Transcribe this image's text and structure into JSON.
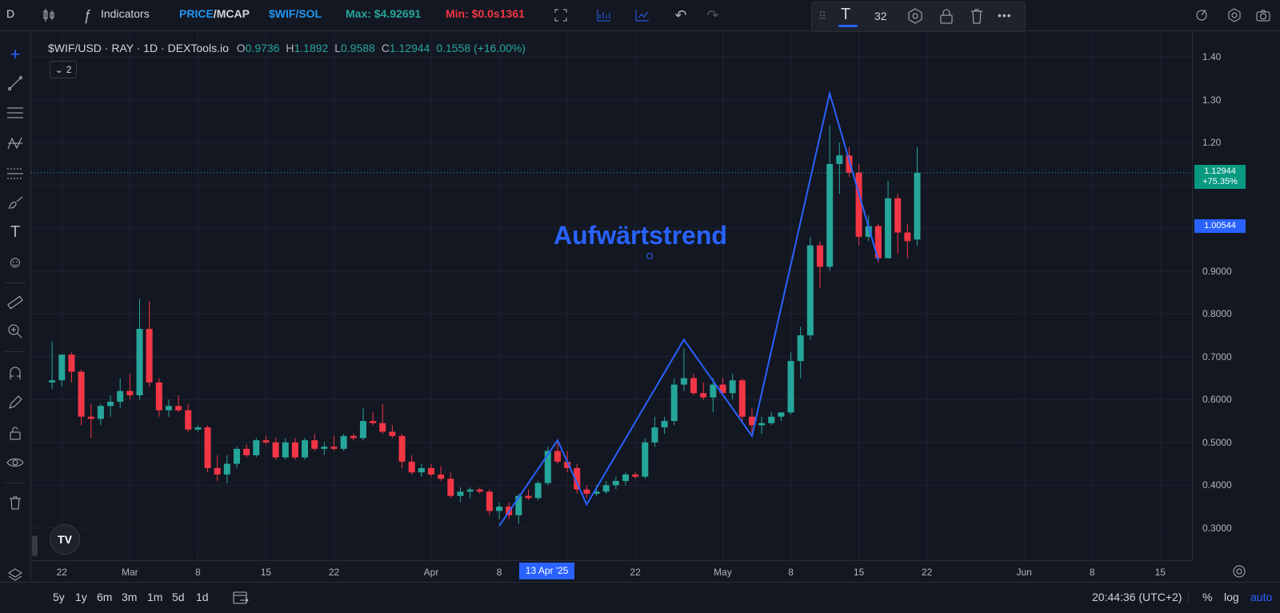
{
  "topbar": {
    "symbol_short": "D",
    "indicators_label": "Indicators",
    "price_mcap": {
      "a": "PRICE",
      "sep": "/",
      "b": "MCAP"
    },
    "pair_sol": "$WIF/SOL",
    "max_label": "Max: $4.92691",
    "min_label": "Min: $0.0s1361",
    "float_font_size": "32"
  },
  "legend": {
    "symbol": "$WIF/USD · RAY · 1D · DEXTools.io",
    "o_key": "O",
    "o_val": "0.9736",
    "h_key": "H",
    "h_val": "1.1892",
    "l_key": "L",
    "l_val": "0.9588",
    "c_key": "C",
    "c_val": "1.12944",
    "change": "0.1558 (+16.00%)",
    "collapsed_count": "2"
  },
  "annotation": "Aufwärtstrend",
  "price_axis": {
    "labels": [
      "1.40",
      "1.30",
      "1.20",
      "0.9000",
      "0.8000",
      "0.7000",
      "0.6000",
      "0.5000",
      "0.4000",
      "0.3000"
    ],
    "current_price": "1.12944",
    "current_change": "+75.35%",
    "cursor_price": "1.00544"
  },
  "time_axis": {
    "labels": [
      "22",
      "Mar",
      "8",
      "15",
      "22",
      "Apr",
      "8",
      "22",
      "May",
      "8",
      "15",
      "22",
      "Jun",
      "8",
      "15"
    ],
    "cursor_date": "13 Apr '25"
  },
  "bottombar": {
    "timeframes": [
      "5y",
      "1y",
      "6m",
      "3m",
      "1m",
      "5d",
      "1d"
    ],
    "clock": "20:44:36 (UTC+2)",
    "percent": "%",
    "log": "log",
    "auto": "auto"
  },
  "colors": {
    "up": "#26a69a",
    "down": "#f23645",
    "accent": "#2962ff",
    "background": "#131722"
  },
  "chart_data": {
    "type": "candlestick",
    "candles": [
      {
        "date": "2025-02-21",
        "o": 0.64,
        "h": 0.735,
        "l": 0.625,
        "c": 0.645
      },
      {
        "date": "2025-02-22",
        "o": 0.645,
        "h": 0.7,
        "l": 0.63,
        "c": 0.705
      },
      {
        "date": "2025-02-23",
        "o": 0.705,
        "h": 0.71,
        "l": 0.64,
        "c": 0.665
      },
      {
        "date": "2025-02-24",
        "o": 0.665,
        "h": 0.67,
        "l": 0.54,
        "c": 0.56
      },
      {
        "date": "2025-02-25",
        "o": 0.56,
        "h": 0.59,
        "l": 0.51,
        "c": 0.555
      },
      {
        "date": "2025-02-26",
        "o": 0.555,
        "h": 0.59,
        "l": 0.54,
        "c": 0.585
      },
      {
        "date": "2025-02-27",
        "o": 0.585,
        "h": 0.61,
        "l": 0.56,
        "c": 0.595
      },
      {
        "date": "2025-02-28",
        "o": 0.595,
        "h": 0.65,
        "l": 0.58,
        "c": 0.62
      },
      {
        "date": "2025-03-01",
        "o": 0.62,
        "h": 0.66,
        "l": 0.6,
        "c": 0.61
      },
      {
        "date": "2025-03-02",
        "o": 0.61,
        "h": 0.835,
        "l": 0.6,
        "c": 0.765
      },
      {
        "date": "2025-03-03",
        "o": 0.765,
        "h": 0.83,
        "l": 0.63,
        "c": 0.64
      },
      {
        "date": "2025-03-04",
        "o": 0.64,
        "h": 0.65,
        "l": 0.56,
        "c": 0.575
      },
      {
        "date": "2025-03-05",
        "o": 0.575,
        "h": 0.6,
        "l": 0.56,
        "c": 0.585
      },
      {
        "date": "2025-03-06",
        "o": 0.585,
        "h": 0.61,
        "l": 0.57,
        "c": 0.575
      },
      {
        "date": "2025-03-07",
        "o": 0.575,
        "h": 0.59,
        "l": 0.525,
        "c": 0.53
      },
      {
        "date": "2025-03-08",
        "o": 0.53,
        "h": 0.54,
        "l": 0.525,
        "c": 0.535
      },
      {
        "date": "2025-03-09",
        "o": 0.535,
        "h": 0.54,
        "l": 0.43,
        "c": 0.44
      },
      {
        "date": "2025-03-10",
        "o": 0.44,
        "h": 0.47,
        "l": 0.41,
        "c": 0.425
      },
      {
        "date": "2025-03-11",
        "o": 0.425,
        "h": 0.47,
        "l": 0.405,
        "c": 0.45
      },
      {
        "date": "2025-03-12",
        "o": 0.45,
        "h": 0.49,
        "l": 0.44,
        "c": 0.485
      },
      {
        "date": "2025-03-13",
        "o": 0.485,
        "h": 0.495,
        "l": 0.465,
        "c": 0.47
      },
      {
        "date": "2025-03-14",
        "o": 0.47,
        "h": 0.51,
        "l": 0.465,
        "c": 0.505
      },
      {
        "date": "2025-03-15",
        "o": 0.505,
        "h": 0.515,
        "l": 0.495,
        "c": 0.5
      },
      {
        "date": "2025-03-16",
        "o": 0.5,
        "h": 0.51,
        "l": 0.46,
        "c": 0.465
      },
      {
        "date": "2025-03-17",
        "o": 0.465,
        "h": 0.51,
        "l": 0.46,
        "c": 0.5
      },
      {
        "date": "2025-03-18",
        "o": 0.5,
        "h": 0.51,
        "l": 0.46,
        "c": 0.465
      },
      {
        "date": "2025-03-19",
        "o": 0.465,
        "h": 0.51,
        "l": 0.46,
        "c": 0.505
      },
      {
        "date": "2025-03-20",
        "o": 0.505,
        "h": 0.52,
        "l": 0.48,
        "c": 0.485
      },
      {
        "date": "2025-03-21",
        "o": 0.485,
        "h": 0.5,
        "l": 0.47,
        "c": 0.49
      },
      {
        "date": "2025-03-22",
        "o": 0.49,
        "h": 0.515,
        "l": 0.48,
        "c": 0.485
      },
      {
        "date": "2025-03-23",
        "o": 0.485,
        "h": 0.52,
        "l": 0.48,
        "c": 0.515
      },
      {
        "date": "2025-03-24",
        "o": 0.515,
        "h": 0.52,
        "l": 0.505,
        "c": 0.51
      },
      {
        "date": "2025-03-25",
        "o": 0.51,
        "h": 0.58,
        "l": 0.505,
        "c": 0.55
      },
      {
        "date": "2025-03-26",
        "o": 0.55,
        "h": 0.57,
        "l": 0.54,
        "c": 0.545
      },
      {
        "date": "2025-03-27",
        "o": 0.545,
        "h": 0.59,
        "l": 0.52,
        "c": 0.525
      },
      {
        "date": "2025-03-28",
        "o": 0.525,
        "h": 0.54,
        "l": 0.51,
        "c": 0.515
      },
      {
        "date": "2025-03-29",
        "o": 0.515,
        "h": 0.52,
        "l": 0.44,
        "c": 0.455
      },
      {
        "date": "2025-03-30",
        "o": 0.455,
        "h": 0.47,
        "l": 0.425,
        "c": 0.43
      },
      {
        "date": "2025-03-31",
        "o": 0.43,
        "h": 0.45,
        "l": 0.42,
        "c": 0.44
      },
      {
        "date": "2025-04-01",
        "o": 0.44,
        "h": 0.45,
        "l": 0.42,
        "c": 0.425
      },
      {
        "date": "2025-04-02",
        "o": 0.425,
        "h": 0.445,
        "l": 0.41,
        "c": 0.415
      },
      {
        "date": "2025-04-03",
        "o": 0.415,
        "h": 0.43,
        "l": 0.37,
        "c": 0.375
      },
      {
        "date": "2025-04-04",
        "o": 0.375,
        "h": 0.395,
        "l": 0.36,
        "c": 0.385
      },
      {
        "date": "2025-04-05",
        "o": 0.385,
        "h": 0.395,
        "l": 0.37,
        "c": 0.39
      },
      {
        "date": "2025-04-06",
        "o": 0.39,
        "h": 0.395,
        "l": 0.38,
        "c": 0.385
      },
      {
        "date": "2025-04-07",
        "o": 0.385,
        "h": 0.39,
        "l": 0.33,
        "c": 0.34
      },
      {
        "date": "2025-04-08",
        "o": 0.34,
        "h": 0.36,
        "l": 0.32,
        "c": 0.35
      },
      {
        "date": "2025-04-09",
        "o": 0.35,
        "h": 0.36,
        "l": 0.32,
        "c": 0.33
      },
      {
        "date": "2025-04-10",
        "o": 0.33,
        "h": 0.38,
        "l": 0.31,
        "c": 0.375
      },
      {
        "date": "2025-04-11",
        "o": 0.375,
        "h": 0.39,
        "l": 0.365,
        "c": 0.37
      },
      {
        "date": "2025-04-12",
        "o": 0.37,
        "h": 0.41,
        "l": 0.365,
        "c": 0.405
      },
      {
        "date": "2025-04-13",
        "o": 0.405,
        "h": 0.49,
        "l": 0.4,
        "c": 0.48
      },
      {
        "date": "2025-04-14",
        "o": 0.48,
        "h": 0.5,
        "l": 0.45,
        "c": 0.455
      },
      {
        "date": "2025-04-15",
        "o": 0.455,
        "h": 0.48,
        "l": 0.43,
        "c": 0.44
      },
      {
        "date": "2025-04-16",
        "o": 0.44,
        "h": 0.45,
        "l": 0.38,
        "c": 0.39
      },
      {
        "date": "2025-04-17",
        "o": 0.39,
        "h": 0.4,
        "l": 0.37,
        "c": 0.38
      },
      {
        "date": "2025-04-18",
        "o": 0.38,
        "h": 0.4,
        "l": 0.375,
        "c": 0.385
      },
      {
        "date": "2025-04-19",
        "o": 0.385,
        "h": 0.41,
        "l": 0.38,
        "c": 0.4
      },
      {
        "date": "2025-04-20",
        "o": 0.4,
        "h": 0.42,
        "l": 0.39,
        "c": 0.41
      },
      {
        "date": "2025-04-21",
        "o": 0.41,
        "h": 0.43,
        "l": 0.4,
        "c": 0.425
      },
      {
        "date": "2025-04-22",
        "o": 0.425,
        "h": 0.43,
        "l": 0.415,
        "c": 0.42
      },
      {
        "date": "2025-04-23",
        "o": 0.42,
        "h": 0.51,
        "l": 0.415,
        "c": 0.5
      },
      {
        "date": "2025-04-24",
        "o": 0.5,
        "h": 0.56,
        "l": 0.49,
        "c": 0.535
      },
      {
        "date": "2025-04-25",
        "o": 0.535,
        "h": 0.56,
        "l": 0.52,
        "c": 0.55
      },
      {
        "date": "2025-04-26",
        "o": 0.55,
        "h": 0.65,
        "l": 0.54,
        "c": 0.635
      },
      {
        "date": "2025-04-27",
        "o": 0.635,
        "h": 0.72,
        "l": 0.62,
        "c": 0.65
      },
      {
        "date": "2025-04-28",
        "o": 0.65,
        "h": 0.66,
        "l": 0.61,
        "c": 0.615
      },
      {
        "date": "2025-04-29",
        "o": 0.615,
        "h": 0.64,
        "l": 0.6,
        "c": 0.605
      },
      {
        "date": "2025-04-30",
        "o": 0.605,
        "h": 0.65,
        "l": 0.57,
        "c": 0.635
      },
      {
        "date": "2025-05-01",
        "o": 0.635,
        "h": 0.65,
        "l": 0.61,
        "c": 0.615
      },
      {
        "date": "2025-05-02",
        "o": 0.615,
        "h": 0.66,
        "l": 0.6,
        "c": 0.645
      },
      {
        "date": "2025-05-03",
        "o": 0.645,
        "h": 0.65,
        "l": 0.55,
        "c": 0.56
      },
      {
        "date": "2025-05-04",
        "o": 0.56,
        "h": 0.58,
        "l": 0.52,
        "c": 0.54
      },
      {
        "date": "2025-05-05",
        "o": 0.54,
        "h": 0.56,
        "l": 0.52,
        "c": 0.545
      },
      {
        "date": "2025-05-06",
        "o": 0.545,
        "h": 0.57,
        "l": 0.54,
        "c": 0.56
      },
      {
        "date": "2025-05-07",
        "o": 0.56,
        "h": 0.57,
        "l": 0.55,
        "c": 0.57
      },
      {
        "date": "2025-05-08",
        "o": 0.57,
        "h": 0.71,
        "l": 0.565,
        "c": 0.69
      },
      {
        "date": "2025-05-09",
        "o": 0.69,
        "h": 0.77,
        "l": 0.65,
        "c": 0.75
      },
      {
        "date": "2025-05-10",
        "o": 0.75,
        "h": 0.98,
        "l": 0.74,
        "c": 0.96
      },
      {
        "date": "2025-05-11",
        "o": 0.96,
        "h": 0.97,
        "l": 0.86,
        "c": 0.91
      },
      {
        "date": "2025-05-12",
        "o": 0.91,
        "h": 1.24,
        "l": 0.9,
        "c": 1.15
      },
      {
        "date": "2025-05-13",
        "o": 1.15,
        "h": 1.2,
        "l": 1.08,
        "c": 1.17
      },
      {
        "date": "2025-05-14",
        "o": 1.17,
        "h": 1.19,
        "l": 1.12,
        "c": 1.13
      },
      {
        "date": "2025-05-15",
        "o": 1.13,
        "h": 1.15,
        "l": 0.96,
        "c": 0.98
      },
      {
        "date": "2025-05-16",
        "o": 0.98,
        "h": 1.03,
        "l": 0.97,
        "c": 1.005
      },
      {
        "date": "2025-05-17",
        "o": 1.005,
        "h": 1.01,
        "l": 0.92,
        "c": 0.93
      },
      {
        "date": "2025-05-18",
        "o": 0.93,
        "h": 1.11,
        "l": 0.93,
        "c": 1.07
      },
      {
        "date": "2025-05-19",
        "o": 1.07,
        "h": 1.08,
        "l": 0.94,
        "c": 0.99
      },
      {
        "date": "2025-05-20",
        "o": 0.99,
        "h": 1.01,
        "l": 0.93,
        "c": 0.97
      },
      {
        "date": "2025-05-21",
        "o": 0.9736,
        "h": 1.1892,
        "l": 0.9588,
        "c": 1.12944
      }
    ],
    "trendline": [
      {
        "date": "2025-04-08",
        "price": 0.305
      },
      {
        "date": "2025-04-14",
        "price": 0.505
      },
      {
        "date": "2025-04-17",
        "price": 0.355
      },
      {
        "date": "2025-04-27",
        "price": 0.74
      },
      {
        "date": "2025-05-04",
        "price": 0.515
      },
      {
        "date": "2025-05-12",
        "price": 1.315
      },
      {
        "date": "2025-05-17",
        "price": 0.925
      }
    ],
    "ylim": [
      0.225,
      1.46
    ],
    "xlim": [
      "2025-02-20",
      "2025-06-16"
    ],
    "grid": true
  }
}
